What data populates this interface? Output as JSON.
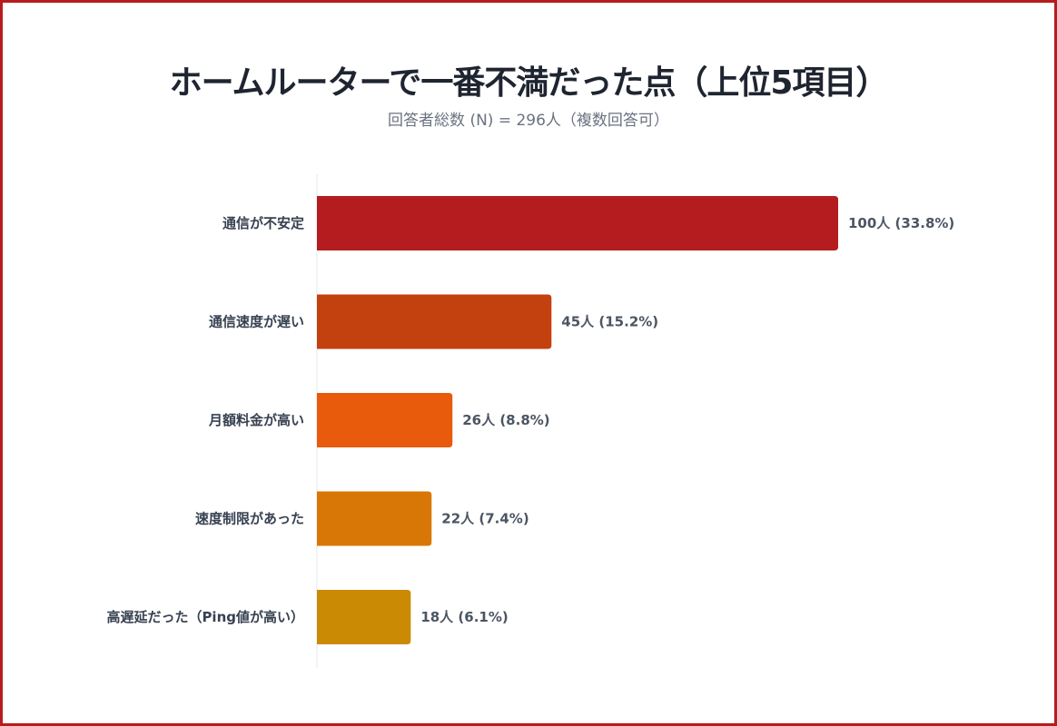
{
  "chart_data": {
    "type": "bar",
    "orientation": "horizontal",
    "title": "ホームルーターで一番不満だった点（上位5項目）",
    "subtitle": "回答者総数 (N) = 296人（複数回答可）",
    "categories": [
      "通信が不安定",
      "通信速度が遅い",
      "月額料金が高い",
      "速度制限があった",
      "高遅延だった（Ping値が高い）"
    ],
    "values": [
      100,
      45,
      26,
      22,
      18
    ],
    "percentages": [
      33.8,
      15.2,
      8.8,
      7.4,
      6.1
    ],
    "data_labels": [
      "100人 (33.8%)",
      "45人 (15.2%)",
      "26人 (8.8%)",
      "22人 (7.4%)",
      "18人 (6.1%)"
    ],
    "colors": [
      "#b41c1f",
      "#c2410f",
      "#e85a0c",
      "#d97706",
      "#ca8a04"
    ],
    "xlim": [
      0,
      100
    ],
    "grid": false,
    "legend": "none"
  },
  "frame_color": "#b71c1c"
}
